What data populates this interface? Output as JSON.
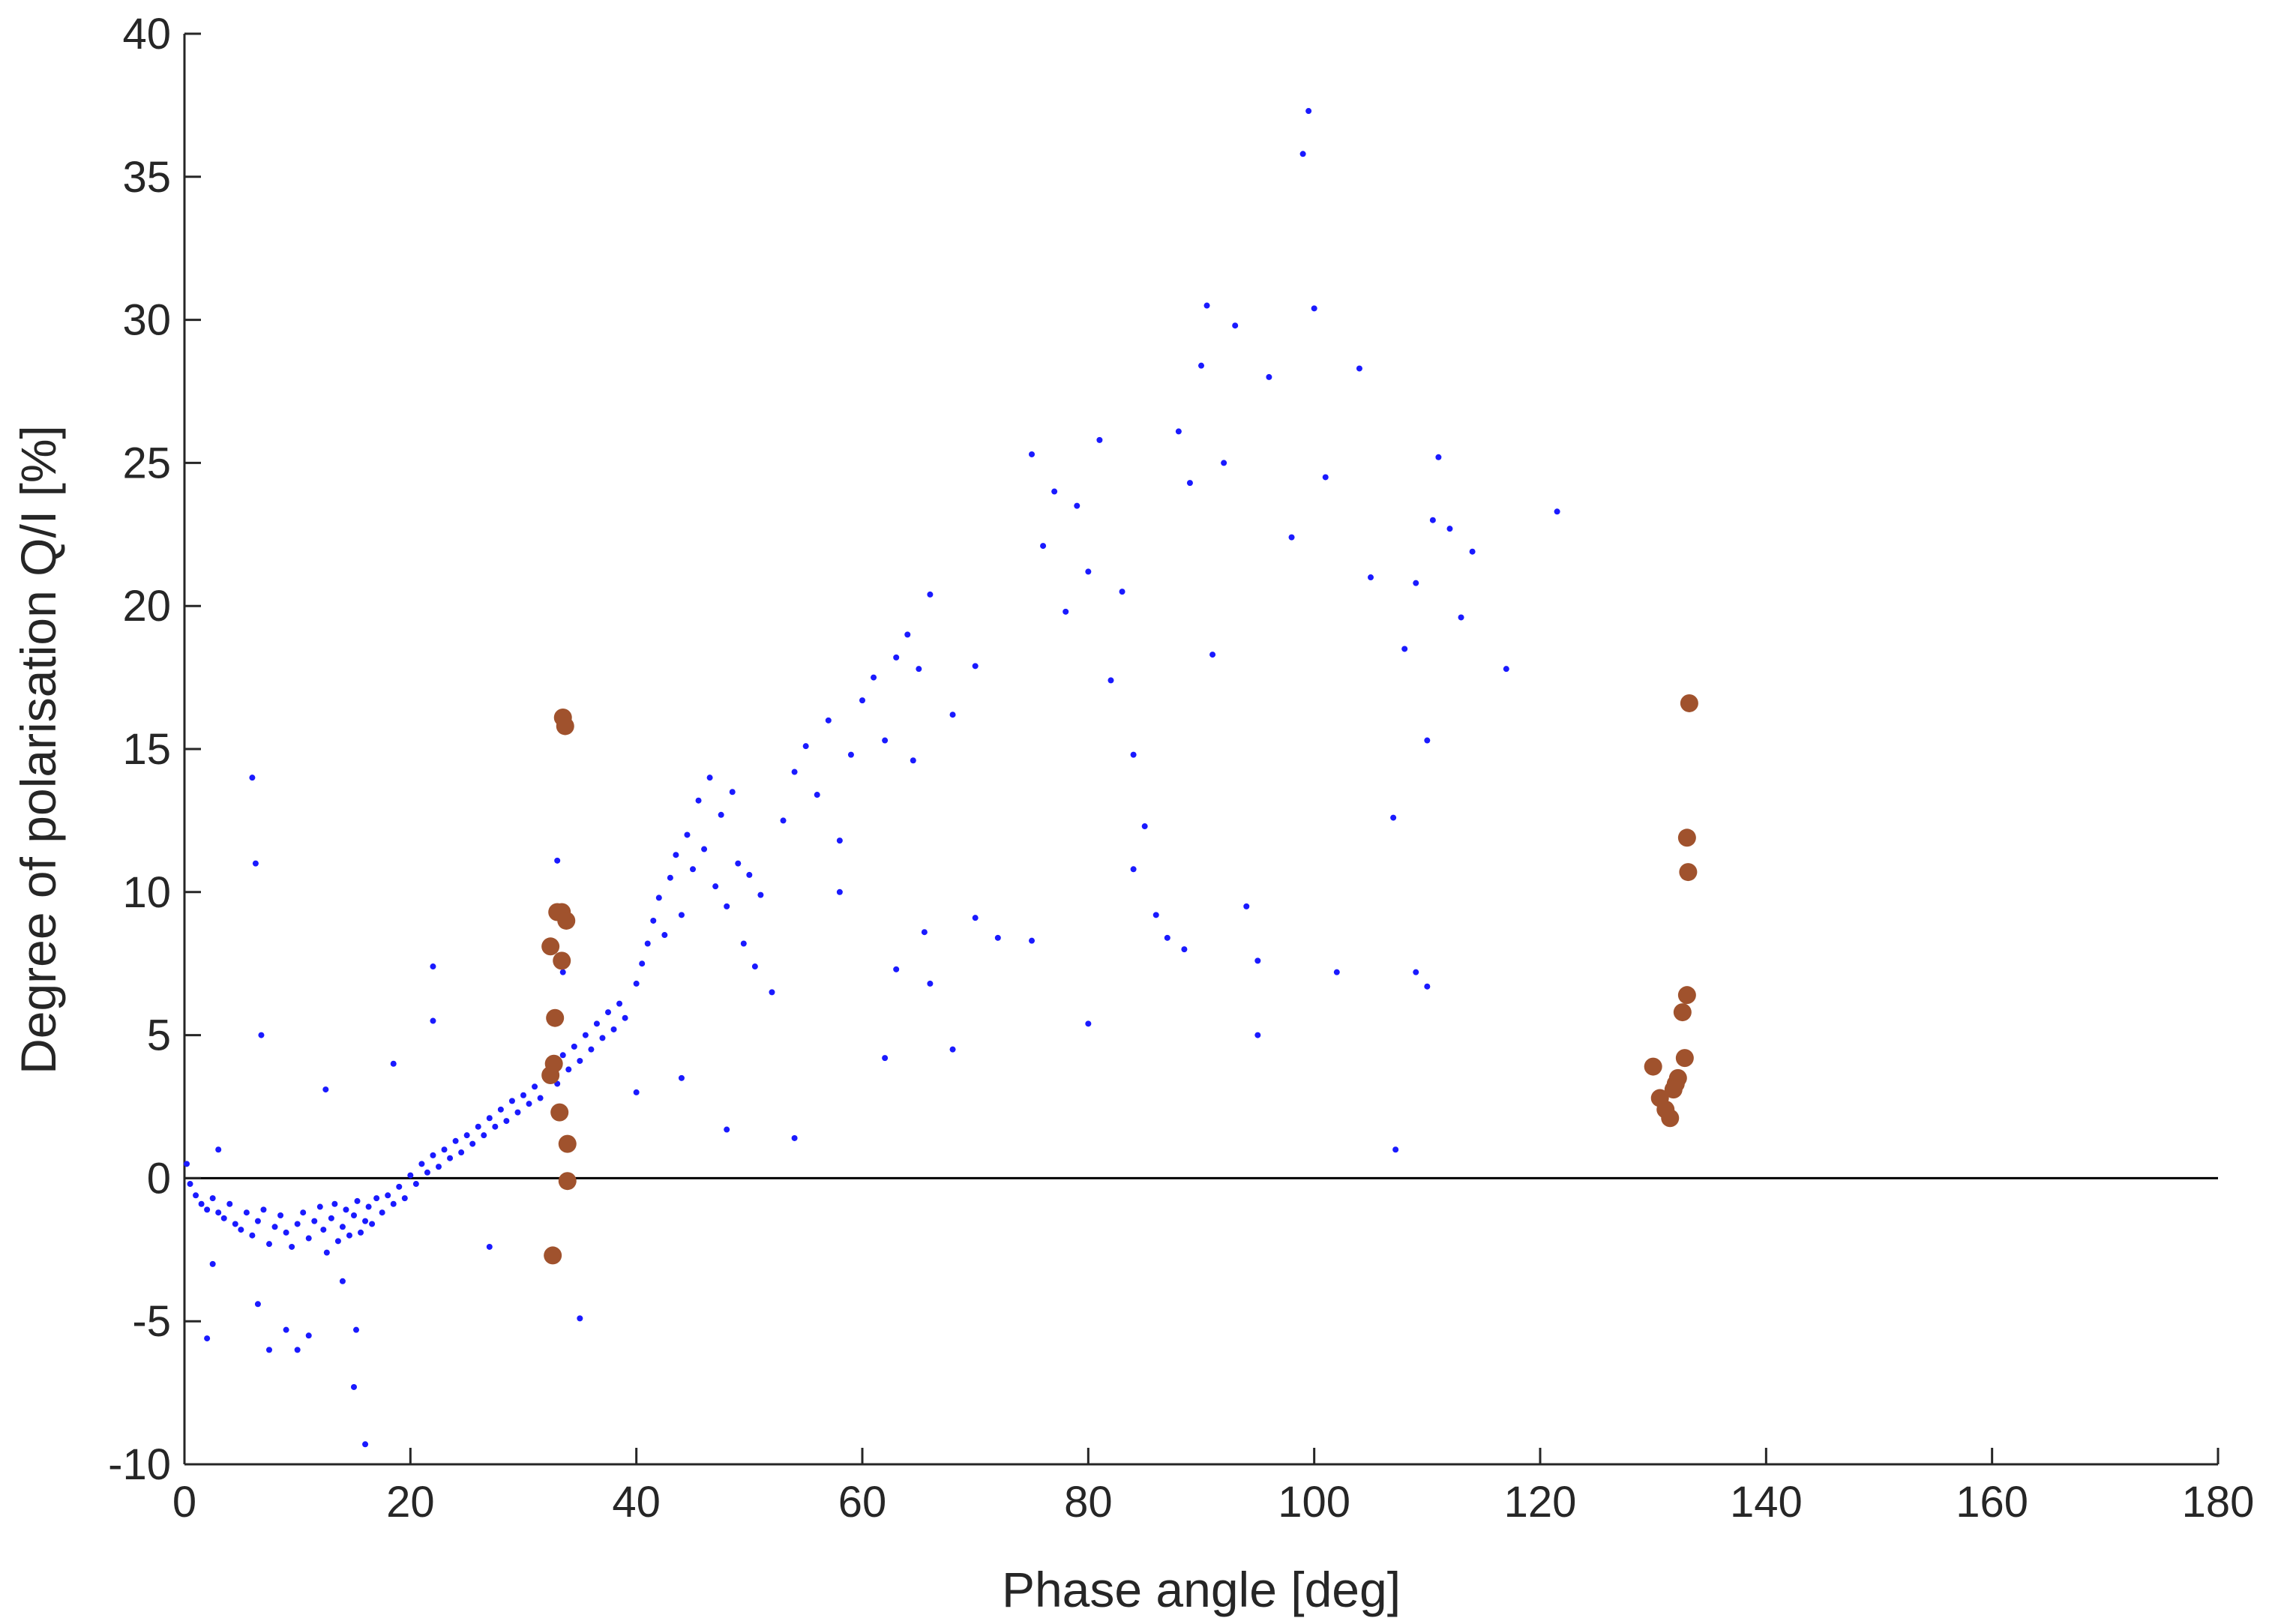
{
  "chart_data": {
    "type": "scatter",
    "xlabel": "Phase angle [deg]",
    "ylabel": "Degree of polarisation Q/I [%]",
    "xlim": [
      0,
      180
    ],
    "ylim": [
      -10,
      40
    ],
    "x_ticks": [
      0,
      20,
      40,
      60,
      80,
      100,
      120,
      140,
      160,
      180
    ],
    "y_ticks": [
      -10,
      -5,
      0,
      5,
      10,
      15,
      20,
      25,
      30,
      35,
      40
    ],
    "x_tick_labels": [
      "0",
      "20",
      "40",
      "60",
      "80",
      "100",
      "120",
      "140",
      "160",
      "180"
    ],
    "y_tick_labels": [
      "-10",
      "-5",
      "0",
      "5",
      "10",
      "15",
      "20",
      "25",
      "30",
      "35",
      "40"
    ],
    "grid": false,
    "reference_line": {
      "y": 0,
      "color": "#000000"
    },
    "series": [
      {
        "marker": "small-dot",
        "color": "#1a1aff",
        "points": [
          [
            0.2,
            0.5
          ],
          [
            0.5,
            -0.2
          ],
          [
            1,
            -0.6
          ],
          [
            1.5,
            -0.9
          ],
          [
            2,
            -1.1
          ],
          [
            2.5,
            -0.7
          ],
          [
            3,
            -1.2
          ],
          [
            3.5,
            -1.4
          ],
          [
            4,
            -0.9
          ],
          [
            4.5,
            -1.6
          ],
          [
            5,
            -1.8
          ],
          [
            5.5,
            -1.2
          ],
          [
            6,
            -2.0
          ],
          [
            6.5,
            -1.5
          ],
          [
            7,
            -1.1
          ],
          [
            7.5,
            -2.3
          ],
          [
            8,
            -1.7
          ],
          [
            8.5,
            -1.3
          ],
          [
            9,
            -1.9
          ],
          [
            9.5,
            -2.4
          ],
          [
            10,
            -1.6
          ],
          [
            10.5,
            -1.2
          ],
          [
            11,
            -2.1
          ],
          [
            11.5,
            -1.5
          ],
          [
            12,
            -1.0
          ],
          [
            12.3,
            -1.8
          ],
          [
            12.6,
            -2.6
          ],
          [
            13,
            -1.4
          ],
          [
            13.3,
            -0.9
          ],
          [
            13.6,
            -2.2
          ],
          [
            14,
            -1.7
          ],
          [
            14.3,
            -1.1
          ],
          [
            14.6,
            -2.0
          ],
          [
            15,
            -1.3
          ],
          [
            15.3,
            -0.8
          ],
          [
            15.6,
            -1.9
          ],
          [
            16,
            -1.5
          ],
          [
            16.3,
            -1.0
          ],
          [
            16.6,
            -1.6
          ],
          [
            17,
            -0.7
          ],
          [
            17.5,
            -1.2
          ],
          [
            18,
            -0.6
          ],
          [
            18.5,
            -0.9
          ],
          [
            19,
            -0.3
          ],
          [
            19.5,
            -0.7
          ],
          [
            20,
            0.1
          ],
          [
            20.5,
            -0.2
          ],
          [
            21,
            0.5
          ],
          [
            21.5,
            0.2
          ],
          [
            22,
            0.8
          ],
          [
            22.5,
            0.4
          ],
          [
            23,
            1.0
          ],
          [
            23.5,
            0.7
          ],
          [
            24,
            1.3
          ],
          [
            24.5,
            0.9
          ],
          [
            25,
            1.5
          ],
          [
            25.5,
            1.2
          ],
          [
            26,
            1.8
          ],
          [
            26.5,
            1.5
          ],
          [
            27,
            2.1
          ],
          [
            27.5,
            1.8
          ],
          [
            28,
            2.4
          ],
          [
            28.5,
            2.0
          ],
          [
            29,
            2.7
          ],
          [
            29.5,
            2.3
          ],
          [
            30,
            2.9
          ],
          [
            30.5,
            2.6
          ],
          [
            31,
            3.2
          ],
          [
            31.5,
            2.8
          ],
          [
            32,
            3.5
          ],
          [
            32.5,
            3.9
          ],
          [
            33,
            3.3
          ],
          [
            33.5,
            4.3
          ],
          [
            34,
            3.8
          ],
          [
            34.5,
            4.6
          ],
          [
            35,
            4.1
          ],
          [
            35.5,
            5.0
          ],
          [
            36,
            4.5
          ],
          [
            36.5,
            5.4
          ],
          [
            37,
            4.9
          ],
          [
            37.5,
            5.8
          ],
          [
            38,
            5.2
          ],
          [
            38.5,
            6.1
          ],
          [
            39,
            5.6
          ],
          [
            40,
            6.8
          ],
          [
            40.5,
            7.5
          ],
          [
            41,
            8.2
          ],
          [
            41.5,
            9.0
          ],
          [
            42,
            9.8
          ],
          [
            42.5,
            8.5
          ],
          [
            43,
            10.5
          ],
          [
            43.5,
            11.3
          ],
          [
            44,
            9.2
          ],
          [
            44.5,
            12.0
          ],
          [
            45,
            10.8
          ],
          [
            45.5,
            13.2
          ],
          [
            46,
            11.5
          ],
          [
            46.5,
            14.0
          ],
          [
            47,
            10.2
          ],
          [
            47.5,
            12.7
          ],
          [
            48,
            9.5
          ],
          [
            48.5,
            13.5
          ],
          [
            49,
            11.0
          ],
          [
            49.5,
            8.2
          ],
          [
            50,
            10.6
          ],
          [
            50.5,
            7.4
          ],
          [
            51,
            9.9
          ],
          [
            52,
            6.5
          ],
          [
            53,
            12.5
          ],
          [
            54,
            14.2
          ],
          [
            55,
            15.1
          ],
          [
            56,
            13.4
          ],
          [
            57,
            16.0
          ],
          [
            58,
            11.8
          ],
          [
            59,
            14.8
          ],
          [
            60,
            16.7
          ],
          [
            61,
            17.5
          ],
          [
            62,
            15.3
          ],
          [
            63,
            18.2
          ],
          [
            64,
            19.0
          ],
          [
            65,
            17.8
          ],
          [
            66,
            20.4
          ],
          [
            64.5,
            14.6
          ],
          [
            65.5,
            8.6
          ],
          [
            63,
            7.3
          ],
          [
            66,
            6.8
          ],
          [
            68,
            16.2
          ],
          [
            70,
            17.9
          ],
          [
            72,
            8.4
          ],
          [
            75,
            25.3
          ],
          [
            76,
            22.1
          ],
          [
            77,
            24.0
          ],
          [
            78,
            19.8
          ],
          [
            79,
            23.5
          ],
          [
            80,
            21.2
          ],
          [
            81,
            25.8
          ],
          [
            82,
            17.4
          ],
          [
            83,
            20.5
          ],
          [
            84,
            14.8
          ],
          [
            85,
            12.3
          ],
          [
            86,
            9.2
          ],
          [
            87,
            8.4
          ],
          [
            88,
            26.1
          ],
          [
            89,
            24.3
          ],
          [
            90,
            28.4
          ],
          [
            90.5,
            30.5
          ],
          [
            91,
            18.3
          ],
          [
            92,
            25.0
          ],
          [
            93,
            29.8
          ],
          [
            94,
            9.5
          ],
          [
            95,
            7.6
          ],
          [
            96,
            28.0
          ],
          [
            98,
            22.4
          ],
          [
            99,
            35.8
          ],
          [
            99.5,
            37.3
          ],
          [
            100,
            30.4
          ],
          [
            101,
            24.5
          ],
          [
            102,
            7.2
          ],
          [
            104,
            28.3
          ],
          [
            105,
            21.0
          ],
          [
            107,
            12.6
          ],
          [
            108,
            18.5
          ],
          [
            109,
            20.8
          ],
          [
            110,
            15.3
          ],
          [
            110.5,
            23.0
          ],
          [
            111,
            25.2
          ],
          [
            112,
            22.7
          ],
          [
            113,
            19.6
          ],
          [
            114,
            21.9
          ],
          [
            117,
            17.8
          ],
          [
            121.5,
            23.3
          ],
          [
            107.2,
            1.0
          ],
          [
            110,
            6.7
          ],
          [
            109,
            7.2
          ],
          [
            95,
            5.0
          ],
          [
            88.5,
            8.0
          ],
          [
            84,
            10.8
          ],
          [
            80,
            5.4
          ],
          [
            75,
            8.3
          ],
          [
            70,
            9.1
          ],
          [
            68,
            4.5
          ],
          [
            62,
            4.2
          ],
          [
            58,
            10.0
          ],
          [
            54,
            1.4
          ],
          [
            48,
            1.7
          ],
          [
            44,
            3.5
          ],
          [
            40,
            3.0
          ],
          [
            35,
            -4.9
          ],
          [
            33.5,
            7.2
          ],
          [
            33,
            11.1
          ],
          [
            27,
            -2.4
          ],
          [
            22,
            5.5
          ],
          [
            22,
            7.4
          ],
          [
            18.5,
            4.0
          ],
          [
            16,
            -9.3
          ],
          [
            15,
            -7.3
          ],
          [
            15.2,
            -5.3
          ],
          [
            14,
            -3.6
          ],
          [
            12.5,
            3.1
          ],
          [
            11,
            -5.5
          ],
          [
            10,
            -6.0
          ],
          [
            9,
            -5.3
          ],
          [
            7.5,
            -6.0
          ],
          [
            6.5,
            -4.4
          ],
          [
            6,
            14.0
          ],
          [
            6.3,
            11.0
          ],
          [
            6.8,
            5.0
          ],
          [
            3,
            1.0
          ],
          [
            2,
            -5.6
          ],
          [
            2.5,
            -3.0
          ]
        ]
      },
      {
        "marker": "large-dot",
        "color": "#a0522d",
        "points": [
          [
            33.5,
            16.1
          ],
          [
            33.7,
            15.8
          ],
          [
            33.0,
            9.3
          ],
          [
            33.4,
            9.3
          ],
          [
            33.8,
            9.0
          ],
          [
            32.4,
            8.1
          ],
          [
            33.4,
            7.6
          ],
          [
            32.8,
            5.6
          ],
          [
            32.7,
            4.0
          ],
          [
            32.4,
            3.6
          ],
          [
            33.2,
            2.3
          ],
          [
            33.9,
            1.2
          ],
          [
            33.9,
            -0.1
          ],
          [
            32.6,
            -2.7
          ],
          [
            133.2,
            16.6
          ],
          [
            133.0,
            11.9
          ],
          [
            133.1,
            10.7
          ],
          [
            133.0,
            6.4
          ],
          [
            132.6,
            5.8
          ],
          [
            132.8,
            4.2
          ],
          [
            132.2,
            3.5
          ],
          [
            132.0,
            3.3
          ],
          [
            131.8,
            3.1
          ],
          [
            130.0,
            3.9
          ],
          [
            130.6,
            2.8
          ],
          [
            131.1,
            2.4
          ],
          [
            131.5,
            2.1
          ]
        ]
      }
    ]
  }
}
